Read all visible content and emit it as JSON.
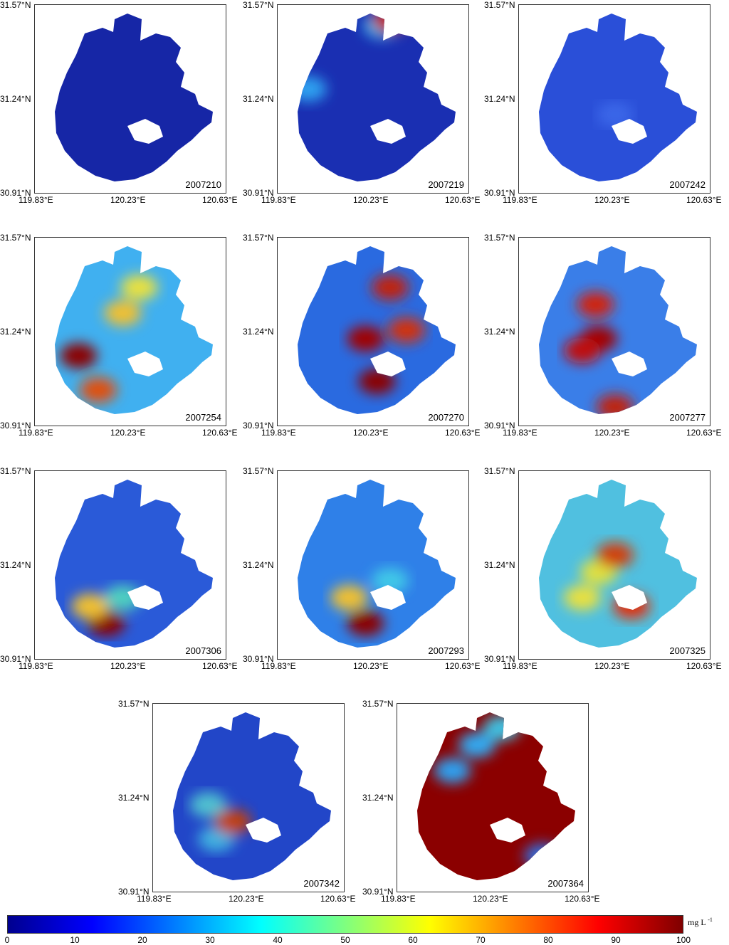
{
  "lat_labels": [
    "31.57°N",
    "31.24°N",
    "30.91°N"
  ],
  "lon_labels": [
    "119.83°E",
    "120.23°E",
    "120.63°E"
  ],
  "panels": [
    {
      "date": "2007210",
      "fill": "#1626a6",
      "hot": []
    },
    {
      "date": "2007219",
      "fill": "#1a2fb2",
      "hot": [
        [
          0.55,
          0.08,
          "#2fb8f0"
        ],
        [
          0.6,
          0.05,
          "#c02010"
        ],
        [
          0.1,
          0.45,
          "#2fa0f0"
        ]
      ]
    },
    {
      "date": "2007242",
      "fill": "#2a4fd8",
      "hot": [
        [
          0.5,
          0.6,
          "#3a66e8"
        ]
      ]
    },
    {
      "date": "2007254",
      "fill": "#40b0f0",
      "hot": [
        [
          0.18,
          0.65,
          "#8b0000"
        ],
        [
          0.3,
          0.85,
          "#e05010"
        ],
        [
          0.45,
          0.4,
          "#f0c030"
        ],
        [
          0.55,
          0.25,
          "#e8e040"
        ]
      ]
    },
    {
      "date": "2007270",
      "fill": "#2a6ae0",
      "hot": [
        [
          0.52,
          0.8,
          "#8b0000"
        ],
        [
          0.45,
          0.55,
          "#a00000"
        ],
        [
          0.6,
          0.25,
          "#c02010"
        ],
        [
          0.7,
          0.5,
          "#d03010"
        ]
      ]
    },
    {
      "date": "2007277",
      "fill": "#3a7ee8",
      "hot": [
        [
          0.4,
          0.55,
          "#a00000"
        ],
        [
          0.3,
          0.62,
          "#c01010"
        ],
        [
          0.38,
          0.35,
          "#d02010"
        ],
        [
          0.5,
          0.95,
          "#c02010"
        ]
      ]
    },
    {
      "date": "2007306",
      "fill": "#2a5ad8",
      "hot": [
        [
          0.35,
          0.85,
          "#8b0000"
        ],
        [
          0.25,
          0.75,
          "#f0c030"
        ],
        [
          0.45,
          0.7,
          "#50d0c0"
        ]
      ]
    },
    {
      "date": "2007293",
      "fill": "#2f80e8",
      "hot": [
        [
          0.45,
          0.85,
          "#8b0000"
        ],
        [
          0.35,
          0.7,
          "#f0c030"
        ],
        [
          0.6,
          0.6,
          "#40c8e8"
        ]
      ]
    },
    {
      "date": "2007325",
      "fill": "#50c0e0",
      "hot": [
        [
          0.4,
          0.55,
          "#e0e040"
        ],
        [
          0.5,
          0.45,
          "#d04010"
        ],
        [
          0.6,
          0.75,
          "#e03010"
        ],
        [
          0.3,
          0.7,
          "#e8e040"
        ]
      ]
    },
    {
      "date": "2007342",
      "fill": "#2246c8",
      "hot": [
        [
          0.25,
          0.55,
          "#50c0d0"
        ],
        [
          0.3,
          0.75,
          "#40b0e0"
        ],
        [
          0.4,
          0.65,
          "#c04010"
        ]
      ]
    },
    {
      "date": "2007364",
      "fill": "#8b0000",
      "hot": [
        [
          0.4,
          0.2,
          "#30a8f0"
        ],
        [
          0.55,
          0.1,
          "#40c0e0"
        ],
        [
          0.25,
          0.35,
          "#2fa0f0"
        ],
        [
          0.8,
          0.85,
          "#3070e0"
        ]
      ]
    }
  ],
  "colorbar": {
    "ticks": [
      "0",
      "10",
      "20",
      "30",
      "40",
      "50",
      "60",
      "70",
      "80",
      "90",
      "100"
    ],
    "unit": "mg L",
    "unit_sup": "-1",
    "colors": [
      "#00008f",
      "#0000ff",
      "#007fff",
      "#00ffff",
      "#7fff7f",
      "#ffff00",
      "#ff7f00",
      "#ff0000",
      "#7f0000"
    ]
  }
}
